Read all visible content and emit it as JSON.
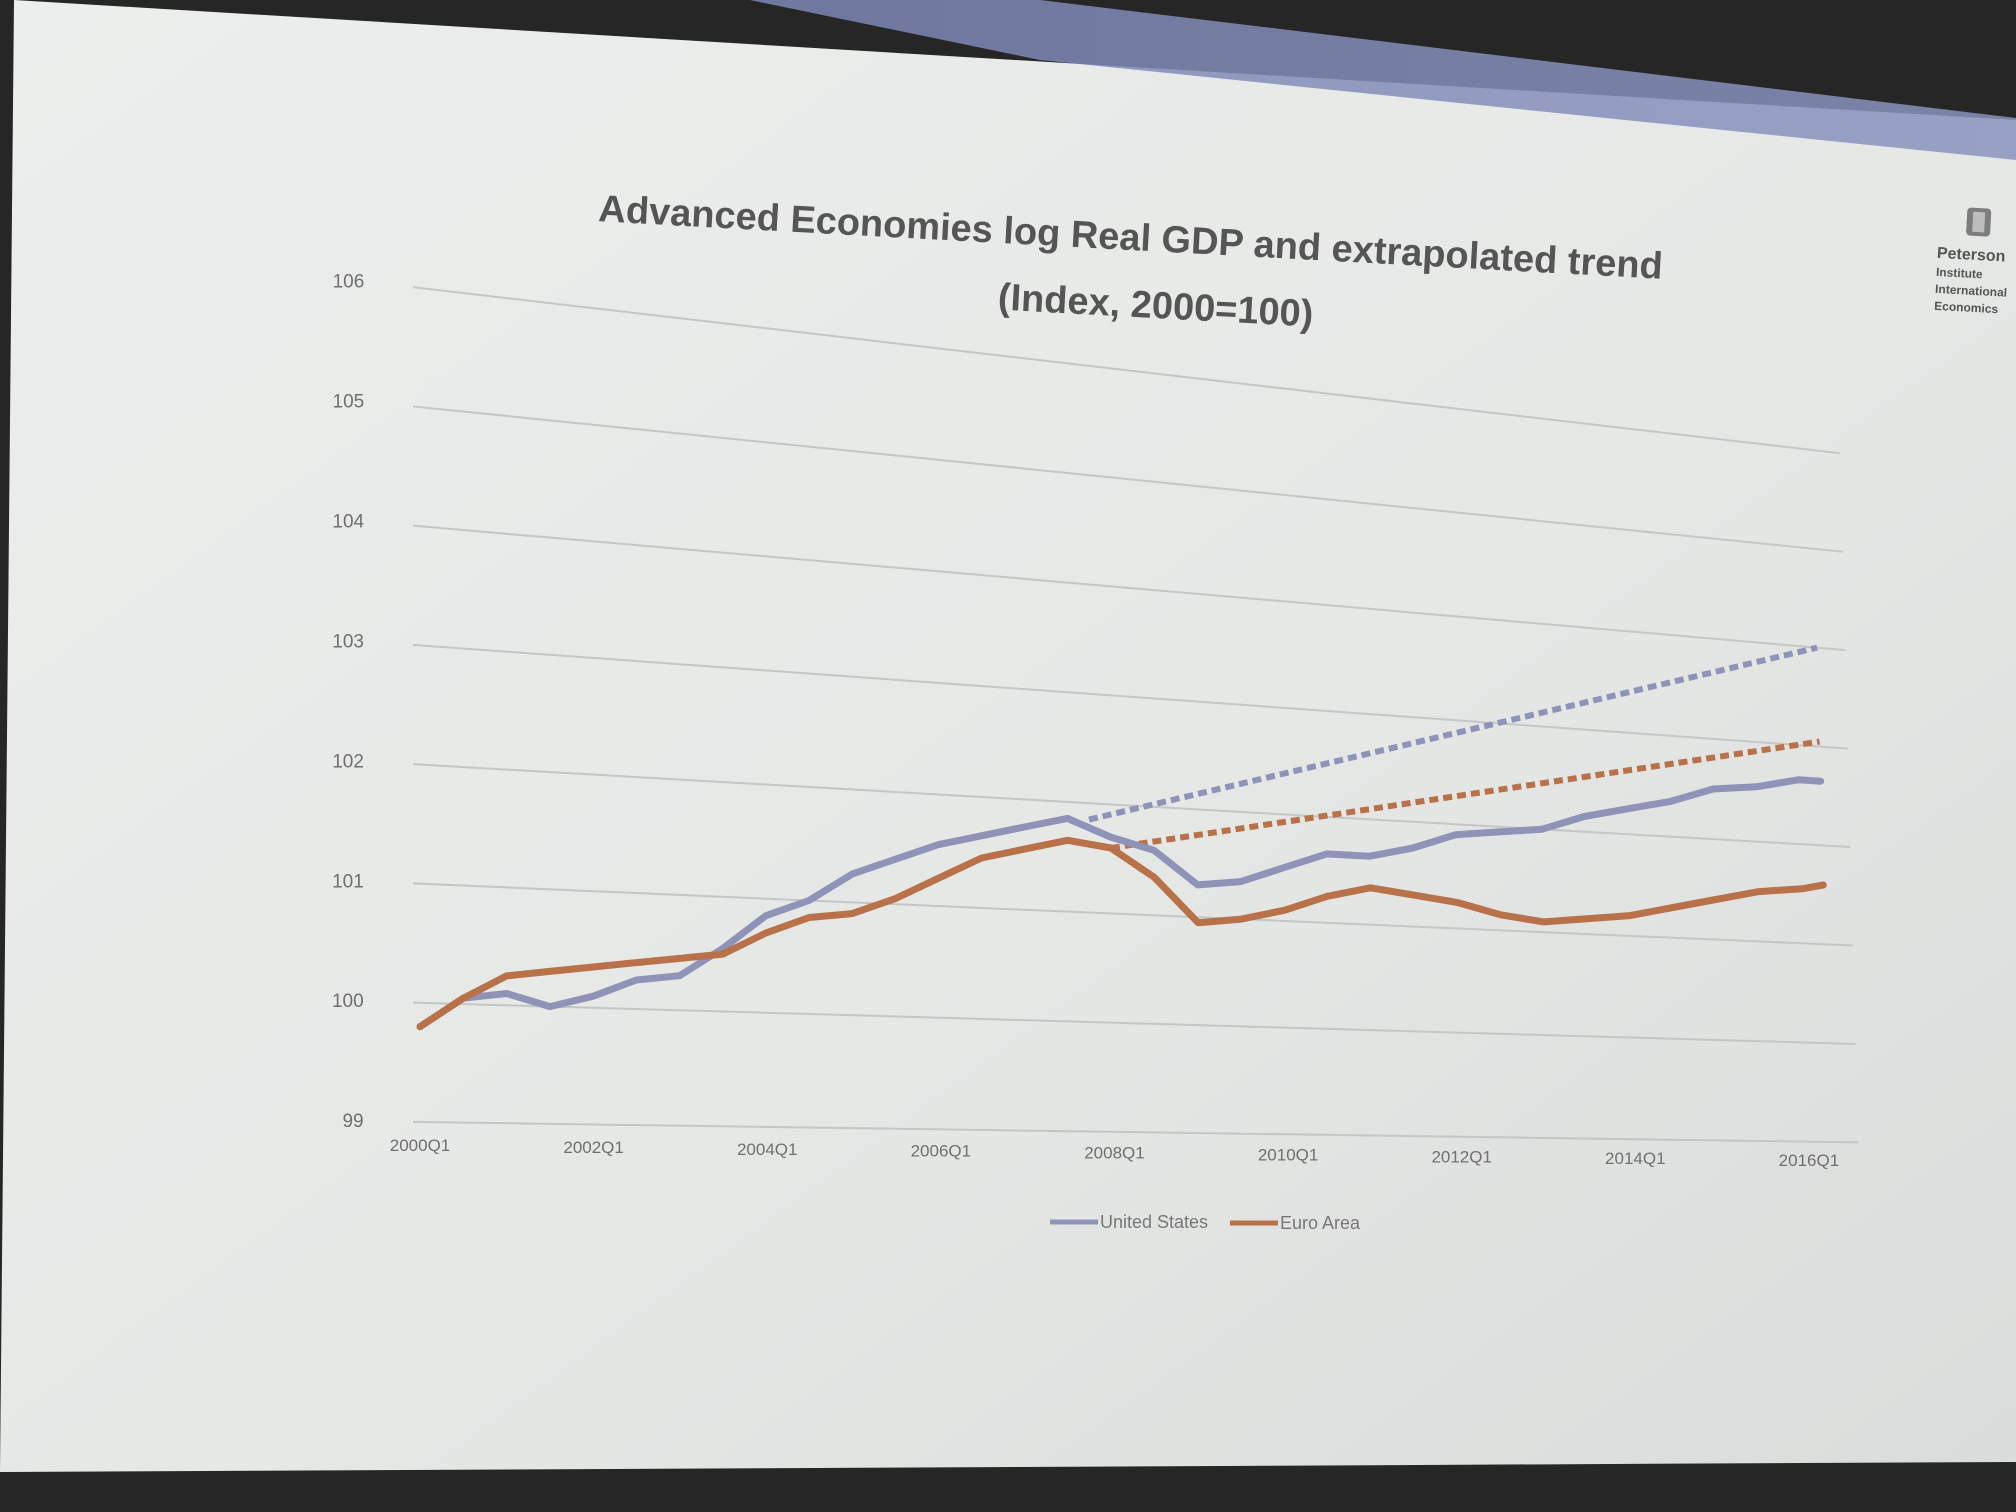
{
  "slide": {
    "logo_text": [
      "Peterson",
      "Institute",
      "International",
      "Economics"
    ]
  },
  "chart_data": {
    "type": "line",
    "title": "Advanced Economies log Real GDP and extrapolated trend",
    "subtitle": "(Index, 2000=100)",
    "xlabel": "",
    "ylabel": "",
    "ylim": [
      99,
      106
    ],
    "y_ticks": [
      99,
      100,
      101,
      102,
      103,
      104,
      105,
      106
    ],
    "x_ticks": [
      "2000Q1",
      "2002Q1",
      "2004Q1",
      "2006Q1",
      "2008Q1",
      "2010Q1",
      "2012Q1",
      "2014Q1",
      "2016Q1"
    ],
    "grid": true,
    "legend": "bottom",
    "series": [
      {
        "name": "United States",
        "color": "#8f93b8",
        "x": [
          "2000Q1",
          "2000Q3",
          "2001Q1",
          "2001Q3",
          "2002Q1",
          "2002Q3",
          "2003Q1",
          "2003Q3",
          "2004Q1",
          "2004Q3",
          "2005Q1",
          "2005Q3",
          "2006Q1",
          "2006Q3",
          "2007Q1",
          "2007Q3",
          "2008Q1",
          "2008Q3",
          "2009Q1",
          "2009Q3",
          "2010Q1",
          "2010Q3",
          "2011Q1",
          "2011Q3",
          "2012Q1",
          "2012Q3",
          "2013Q1",
          "2013Q3",
          "2014Q1",
          "2014Q3",
          "2015Q1",
          "2015Q3",
          "2016Q1",
          "2016Q2"
        ],
        "values": [
          99.8,
          100.05,
          100.1,
          100.0,
          100.1,
          100.25,
          100.3,
          100.55,
          100.85,
          101.0,
          101.25,
          101.4,
          101.55,
          101.65,
          101.75,
          101.85,
          101.7,
          101.6,
          101.3,
          101.35,
          101.5,
          101.65,
          101.65,
          101.75,
          101.9,
          101.95,
          102.0,
          102.15,
          102.25,
          102.35,
          102.5,
          102.55,
          102.65,
          102.65
        ]
      },
      {
        "name": "Euro Area",
        "color": "#b9714a",
        "x": [
          "2000Q1",
          "2000Q3",
          "2001Q1",
          "2001Q3",
          "2002Q1",
          "2002Q3",
          "2003Q1",
          "2003Q3",
          "2004Q1",
          "2004Q3",
          "2005Q1",
          "2005Q3",
          "2006Q1",
          "2006Q3",
          "2007Q1",
          "2007Q3",
          "2008Q1",
          "2008Q3",
          "2009Q1",
          "2009Q3",
          "2010Q1",
          "2010Q3",
          "2011Q1",
          "2011Q3",
          "2012Q1",
          "2012Q3",
          "2013Q1",
          "2013Q3",
          "2014Q1",
          "2014Q3",
          "2015Q1",
          "2015Q3",
          "2016Q1",
          "2016Q2"
        ],
        "values": [
          99.8,
          100.05,
          100.25,
          100.3,
          100.35,
          100.4,
          100.45,
          100.5,
          100.7,
          100.85,
          100.9,
          101.05,
          101.25,
          101.45,
          101.55,
          101.65,
          101.6,
          101.35,
          100.95,
          101.0,
          101.1,
          101.25,
          101.35,
          101.3,
          101.25,
          101.15,
          101.1,
          101.15,
          101.2,
          101.3,
          101.4,
          101.5,
          101.55,
          101.6
        ]
      },
      {
        "name": "",
        "color": "#8f93b8",
        "dashed": true,
        "x": [
          "2007Q4",
          "2016Q2"
        ],
        "values": [
          101.85,
          104.0
        ]
      },
      {
        "name": "",
        "color": "#b9714a",
        "dashed": true,
        "x": [
          "2008Q1",
          "2016Q2"
        ],
        "values": [
          101.6,
          103.05
        ]
      }
    ]
  }
}
